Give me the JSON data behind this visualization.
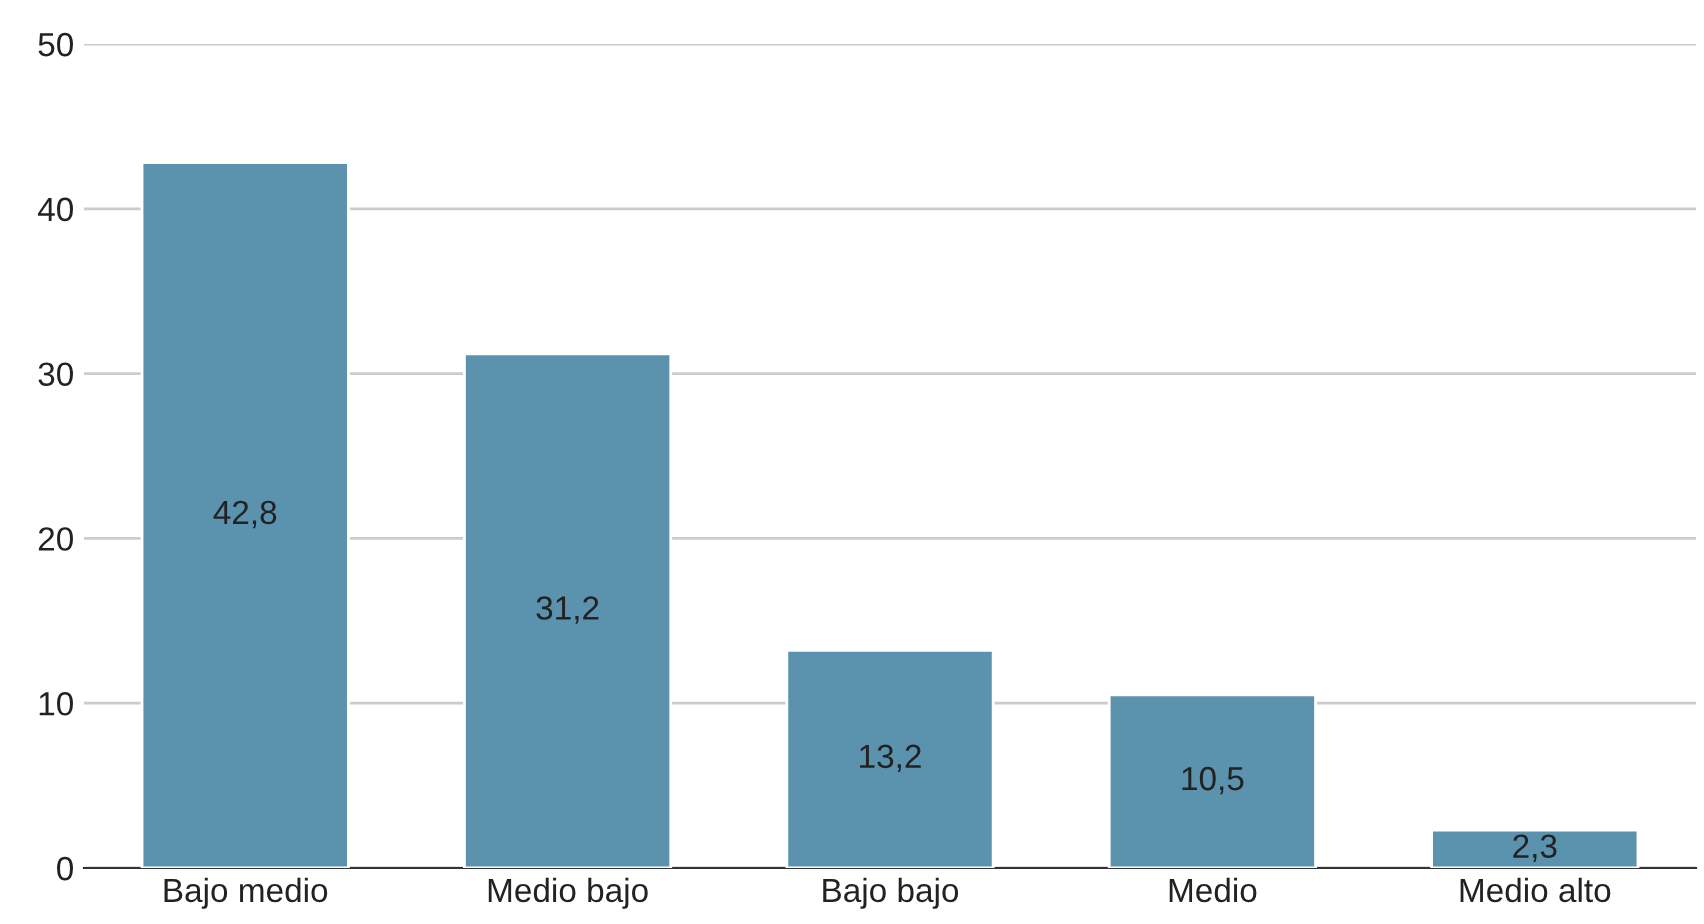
{
  "chart_data": {
    "type": "bar",
    "categories": [
      "Bajo medio",
      "Medio bajo",
      "Bajo bajo",
      "Medio",
      "Medio alto"
    ],
    "values": [
      42.8,
      31.2,
      13.2,
      10.5,
      2.3
    ],
    "value_labels": [
      "42,8",
      "31,2",
      "13,2",
      "10,5",
      "2,3"
    ],
    "color": "#5b92ae",
    "ylim": [
      0,
      50
    ],
    "yticks": [
      0,
      10,
      20,
      30,
      40,
      50
    ],
    "grid": "y",
    "legend": false
  }
}
